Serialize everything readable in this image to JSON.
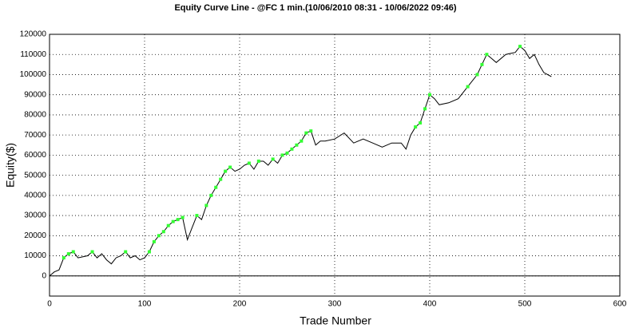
{
  "chart_data": {
    "type": "line",
    "title": "Equity Curve Line - @FC 1 min.(10/06/2010 08:31 - 10/06/2022 09:46)",
    "xlabel": "Trade Number",
    "ylabel": "Equity($)",
    "xlim": [
      0,
      600
    ],
    "ylim": [
      -10000,
      120000
    ],
    "xticks": [
      0,
      100,
      200,
      300,
      400,
      500,
      600
    ],
    "yticks": [
      0,
      10000,
      20000,
      30000,
      40000,
      50000,
      60000,
      70000,
      80000,
      90000,
      100000,
      110000,
      120000
    ],
    "grid": true,
    "series": [
      {
        "color": "#000000",
        "x": [
          0,
          5,
          10,
          15,
          20,
          25,
          30,
          40,
          45,
          50,
          55,
          60,
          65,
          70,
          75,
          80,
          85,
          90,
          95,
          100,
          105,
          110,
          115,
          120,
          125,
          130,
          135,
          140,
          145,
          150,
          155,
          160,
          165,
          170,
          175,
          180,
          185,
          190,
          195,
          200,
          205,
          210,
          215,
          220,
          225,
          230,
          235,
          240,
          245,
          250,
          255,
          260,
          265,
          270,
          275,
          280,
          285,
          290,
          300,
          310,
          320,
          330,
          340,
          350,
          360,
          370,
          375,
          380,
          385,
          390,
          395,
          400,
          405,
          410,
          420,
          430,
          440,
          450,
          455,
          460,
          465,
          470,
          480,
          490,
          495,
          500,
          505,
          510,
          515,
          520,
          528
        ],
        "values": [
          0,
          2000,
          3000,
          9000,
          11000,
          12000,
          9000,
          10000,
          12000,
          9000,
          11000,
          8000,
          6000,
          9000,
          10000,
          12000,
          9000,
          10000,
          8000,
          9000,
          12000,
          17000,
          20000,
          22000,
          25000,
          27000,
          28000,
          29000,
          18000,
          24000,
          30000,
          28000,
          35000,
          40000,
          44000,
          48000,
          52000,
          54000,
          52000,
          53000,
          55000,
          56000,
          53000,
          57000,
          57000,
          55000,
          58000,
          56000,
          60000,
          61000,
          63000,
          65000,
          67000,
          71000,
          72000,
          65000,
          67000,
          67000,
          68000,
          71000,
          66000,
          68000,
          66000,
          64000,
          66000,
          66000,
          63000,
          70000,
          74000,
          76000,
          83000,
          90000,
          88000,
          85000,
          86000,
          88000,
          94000,
          100000,
          105000,
          110000,
          108000,
          106000,
          110000,
          111000,
          114000,
          112000,
          108000,
          110000,
          105000,
          101000,
          99000
        ]
      },
      {
        "color": "#33ff33",
        "marker": "square",
        "x": [
          15,
          20,
          25,
          45,
          80,
          105,
          110,
          115,
          120,
          125,
          130,
          135,
          140,
          155,
          165,
          170,
          175,
          180,
          185,
          190,
          210,
          220,
          235,
          245,
          250,
          255,
          260,
          265,
          270,
          275,
          385,
          390,
          395,
          400,
          440,
          450,
          455,
          460,
          495
        ],
        "values": [
          9000,
          11000,
          12000,
          12000,
          12000,
          12000,
          17000,
          20000,
          22000,
          25000,
          27000,
          28000,
          29000,
          30000,
          35000,
          40000,
          44000,
          48000,
          52000,
          54000,
          56000,
          57000,
          58000,
          60000,
          61000,
          63000,
          65000,
          67000,
          71000,
          72000,
          74000,
          76000,
          83000,
          90000,
          94000,
          100000,
          105000,
          110000,
          114000
        ]
      }
    ]
  }
}
